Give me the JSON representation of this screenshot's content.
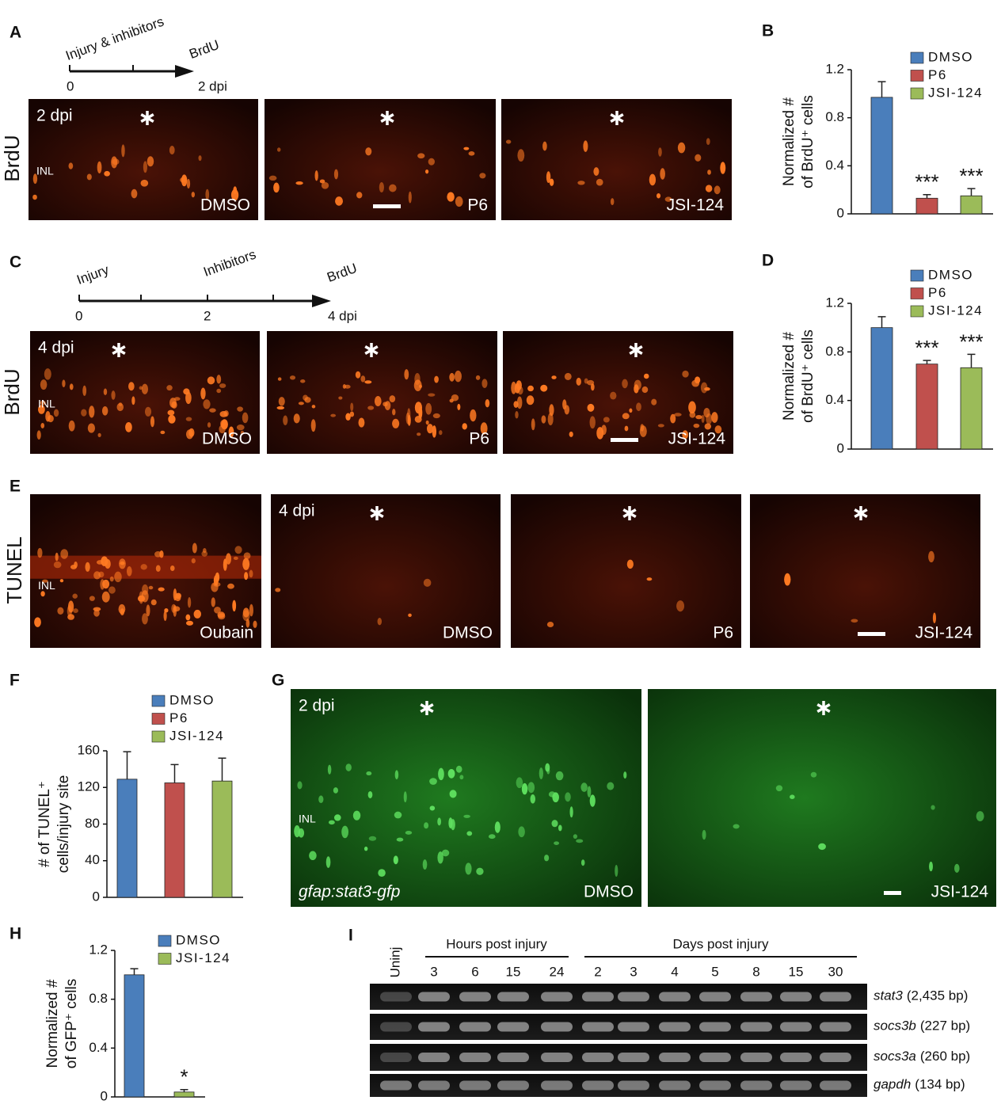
{
  "panel_a": {
    "label": "A",
    "timeline": {
      "events": [
        "Injury & inhibitors",
        "BrdU"
      ],
      "ticks": [
        "0",
        "2 dpi"
      ]
    },
    "row_label": "BrdU",
    "images": [
      {
        "top_left": "2 dpi",
        "left": "INL",
        "bottom_right": "DMSO"
      },
      {
        "bottom_right": "P6"
      },
      {
        "bottom_right": "JSI-124"
      }
    ]
  },
  "panel_c": {
    "label": "C",
    "timeline": {
      "events": [
        "Injury",
        "Inhibitors",
        "BrdU"
      ],
      "ticks": [
        "0",
        "2",
        "4 dpi"
      ]
    },
    "row_label": "BrdU",
    "images": [
      {
        "top_left": "4 dpi",
        "left": "INL",
        "bottom_right": "DMSO"
      },
      {
        "bottom_right": "P6"
      },
      {
        "bottom_right": "JSI-124"
      }
    ]
  },
  "panel_e": {
    "label": "E",
    "row_label": "TUNEL",
    "images": [
      {
        "left": "INL",
        "bottom_right": "Oubain"
      },
      {
        "top_left": "4 dpi",
        "bottom_right": "DMSO"
      },
      {
        "bottom_right": "P6"
      },
      {
        "bottom_right": "JSI-124"
      }
    ]
  },
  "panel_g": {
    "label": "G",
    "images": [
      {
        "top_left": "2 dpi",
        "left": "INL",
        "bottom_left": "gfap:stat3-gfp",
        "bottom_right": "DMSO"
      },
      {
        "bottom_right": "JSI-124"
      }
    ]
  },
  "panel_i": {
    "label": "I",
    "groups": [
      "Hours post injury",
      "Days post injury"
    ],
    "lanes": [
      "Uninj",
      "3",
      "6",
      "15",
      "24",
      "2",
      "3",
      "4",
      "5",
      "8",
      "15",
      "30"
    ],
    "rows": [
      {
        "gene": "stat3",
        "size": "(2,435 bp)"
      },
      {
        "gene": "socs3b",
        "size": "(227 bp)"
      },
      {
        "gene": "socs3a",
        "size": "(260 bp)"
      },
      {
        "gene": "gapdh",
        "size": "(134 bp)"
      }
    ]
  },
  "chart_data": [
    {
      "type": "bar",
      "panel_label": "B",
      "ylabel": [
        "Normalized #",
        "of BrdU⁺ cells"
      ],
      "ylim": [
        0,
        1.2
      ],
      "yticks": [
        0,
        0.4,
        0.8,
        1.2
      ],
      "series": [
        {
          "name": "DMSO",
          "color": "#4a7ebb",
          "values": [
            0.97
          ],
          "errors": [
            0.13
          ]
        },
        {
          "name": "P6",
          "color": "#c0504d",
          "values": [
            0.13
          ],
          "errors": [
            0.03
          ],
          "significance": "***"
        },
        {
          "name": "JSI-124",
          "color": "#9bbb59",
          "values": [
            0.15
          ],
          "errors": [
            0.06
          ],
          "significance": "***"
        }
      ]
    },
    {
      "type": "bar",
      "panel_label": "D",
      "ylabel": [
        "Normalized #",
        "of BrdU⁺ cells"
      ],
      "ylim": [
        0,
        1.2
      ],
      "yticks": [
        0,
        0.4,
        0.8,
        1.2
      ],
      "series": [
        {
          "name": "DMSO",
          "color": "#4a7ebb",
          "values": [
            1.0
          ],
          "errors": [
            0.09
          ]
        },
        {
          "name": "P6",
          "color": "#c0504d",
          "values": [
            0.7
          ],
          "errors": [
            0.03
          ],
          "significance": "***"
        },
        {
          "name": "JSI-124",
          "color": "#9bbb59",
          "values": [
            0.67
          ],
          "errors": [
            0.11
          ],
          "significance": "***"
        }
      ]
    },
    {
      "type": "bar",
      "panel_label": "F",
      "ylabel": [
        "# of TUNEL⁺",
        "cells/injury site"
      ],
      "ylim": [
        0,
        160
      ],
      "yticks": [
        0,
        40,
        80,
        120,
        160
      ],
      "series": [
        {
          "name": "DMSO",
          "color": "#4a7ebb",
          "values": [
            129
          ],
          "errors": [
            30
          ]
        },
        {
          "name": "P6",
          "color": "#c0504d",
          "values": [
            125
          ],
          "errors": [
            20
          ]
        },
        {
          "name": "JSI-124",
          "color": "#9bbb59",
          "values": [
            127
          ],
          "errors": [
            25
          ]
        }
      ]
    },
    {
      "type": "bar",
      "panel_label": "H",
      "ylabel": [
        "Normalized #",
        "of GFP⁺ cells"
      ],
      "ylim": [
        0,
        1.2
      ],
      "yticks": [
        0,
        0.4,
        0.8,
        1.2
      ],
      "series": [
        {
          "name": "DMSO",
          "color": "#4a7ebb",
          "values": [
            1.0
          ],
          "errors": [
            0.05
          ]
        },
        {
          "name": "JSI-124",
          "color": "#9bbb59",
          "values": [
            0.04
          ],
          "errors": [
            0.02
          ],
          "significance": "*"
        }
      ]
    }
  ]
}
